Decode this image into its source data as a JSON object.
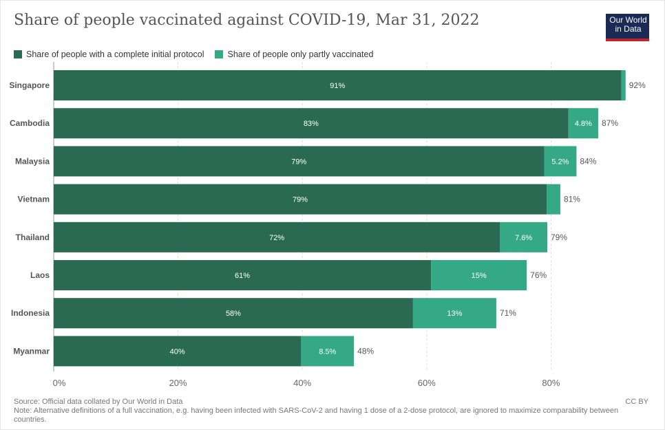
{
  "header": {
    "title": "Share of people vaccinated against COVID-19, Mar 31, 2022",
    "logo_line1": "Our World",
    "logo_line2": "in Data"
  },
  "legend": {
    "items": [
      {
        "label": "Share of people with a complete initial protocol",
        "color": "#2b6a52"
      },
      {
        "label": "Share of people only partly vaccinated",
        "color": "#35a885"
      }
    ]
  },
  "chart_data": {
    "type": "bar",
    "orientation": "horizontal",
    "stacked": true,
    "categories": [
      "Singapore",
      "Cambodia",
      "Malaysia",
      "Vietnam",
      "Thailand",
      "Laos",
      "Indonesia",
      "Myanmar"
    ],
    "series": [
      {
        "name": "Share of people with a complete initial protocol",
        "color": "#2b6a52",
        "values": [
          91.3,
          82.8,
          78.9,
          79.3,
          71.8,
          60.7,
          57.8,
          39.8
        ],
        "labels": [
          "91%",
          "83%",
          "79%",
          "79%",
          "72%",
          "61%",
          "58%",
          "40%"
        ]
      },
      {
        "name": "Share of people only partly vaccinated",
        "color": "#35a885",
        "values": [
          0.7,
          4.8,
          5.2,
          2.2,
          7.6,
          15.4,
          13.4,
          8.5
        ],
        "labels": [
          "",
          "4.8%",
          "5.2%",
          "",
          "7.6%",
          "15%",
          "13%",
          "8.5%"
        ]
      }
    ],
    "totals": [
      "92%",
      "87%",
      "84%",
      "81%",
      "79%",
      "76%",
      "71%",
      "48%"
    ],
    "xlim": [
      0,
      95
    ],
    "xticks": [
      0,
      20,
      40,
      60,
      80
    ],
    "xtick_labels": [
      "0%",
      "20%",
      "40%",
      "60%",
      "80%"
    ],
    "grid": true
  },
  "footer": {
    "source": "Source: Official data collated by Our World in Data",
    "note_line1": "Note: Alternative definitions of a full vaccination, e.g. having been infected with SARS-CoV-2 and having 1 dose of a 2-dose protocol, are ignored to maximize comparability between",
    "note_line2": "countries.",
    "license": "CC BY"
  }
}
